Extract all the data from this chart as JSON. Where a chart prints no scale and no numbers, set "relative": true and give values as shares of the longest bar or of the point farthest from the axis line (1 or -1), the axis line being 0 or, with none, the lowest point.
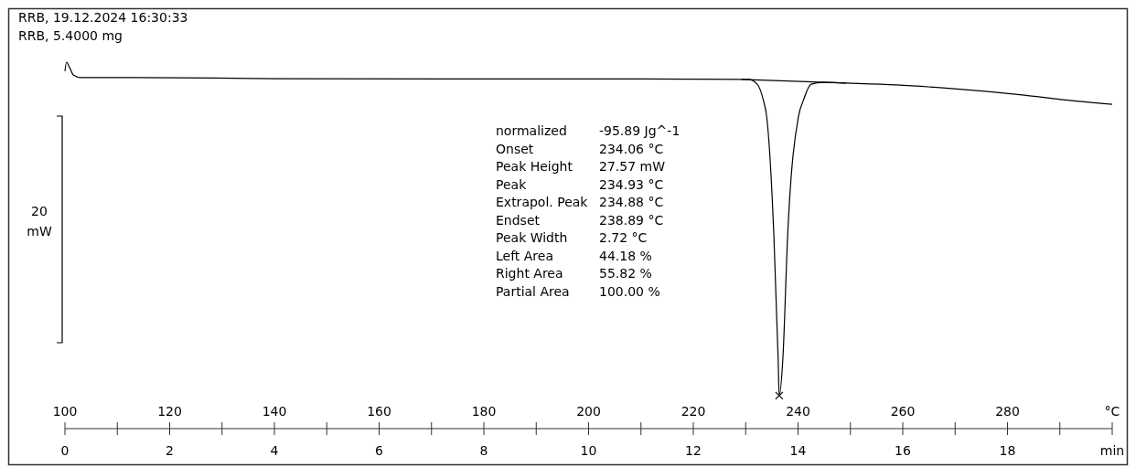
{
  "chart_data": {
    "type": "line",
    "relative": true,
    "ylabel": "20 mW",
    "xlim": [
      100,
      300
    ],
    "xticks": [
      100,
      {
        "value": 110,
        "label": null
      },
      120,
      {
        "value": 130,
        "label": null
      },
      140,
      {
        "value": 150,
        "label": null
      },
      160,
      {
        "value": 170,
        "label": null
      },
      180,
      {
        "value": 190,
        "label": null
      },
      200,
      {
        "value": 210,
        "label": null
      },
      220,
      {
        "value": 230,
        "label": null
      },
      240,
      {
        "value": 250,
        "label": null
      },
      260,
      {
        "value": 270,
        "label": null
      },
      280,
      {
        "value": 290,
        "label": null
      },
      {
        "value": 300,
        "label": "°C"
      }
    ],
    "x2lim": [
      0,
      20
    ],
    "x2ticks": [
      0,
      2,
      4,
      6,
      8,
      10,
      12,
      14,
      16,
      18,
      {
        "value": 20,
        "label": "min"
      }
    ],
    "series": [
      {
        "color": "#000000",
        "x": [
          100,
          100.3,
          100.9,
          101.6,
          103,
          113.8,
          140,
          174.9,
          209.9,
          229.1,
          230.5,
          232.2,
          233.4,
          234,
          235.4,
          236.2,
          236.4,
          237.1,
          238,
          240.1,
          241,
          242.5,
          244.8,
          249.2,
          258.8,
          269.3,
          276.2,
          283.2,
          290.2,
          300
        ],
        "values": [
          0.975,
          1,
          0.985,
          0.965,
          0.958,
          0.958,
          0.955,
          0.954,
          0.954,
          0.953,
          0.953,
          0.94,
          0.895,
          0.853,
          0.521,
          0.19,
          0.09,
          0.19,
          0.521,
          0.853,
          0.895,
          0.94,
          0.945,
          0.943,
          0.938,
          0.928,
          0.92,
          0.91,
          0.898,
          0.885
        ]
      },
      {
        "color": "#000000",
        "x": [
          229.2,
          249.2
        ],
        "values": [
          0.953,
          0.943
        ]
      }
    ],
    "annotations": [
      "RRB, 19.12.2024 16:30:33",
      "RRB, 5.4000 mg",
      "normalized",
      "-95.89 Jg^-1",
      "Onset",
      "234.06 °C",
      "Peak Height",
      "27.57 mW",
      "Peak",
      "234.93 °C",
      "Extrapol. Peak",
      "234.88 °C",
      "Endset",
      "238.89 °C",
      "Peak Width",
      "2.72 °C",
      "Left Area",
      "44.18 %",
      "Right Area",
      "55.82 %",
      "Partial Area",
      "100.00 %"
    ]
  }
}
